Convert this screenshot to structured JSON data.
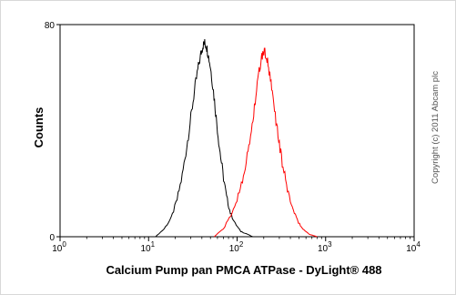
{
  "chart_data": {
    "type": "line",
    "title": "",
    "xlabel": "Calcium Pump pan PMCA ATPase - DyLight® 488",
    "ylabel": "Counts",
    "xscale": "log",
    "xlim": [
      1,
      10000
    ],
    "ylim": [
      0,
      80
    ],
    "x_ticks": [
      {
        "base": "10",
        "exp": "0",
        "value": 1
      },
      {
        "base": "10",
        "exp": "1",
        "value": 10
      },
      {
        "base": "10",
        "exp": "2",
        "value": 100
      },
      {
        "base": "10",
        "exp": "3",
        "value": 1000
      },
      {
        "base": "10",
        "exp": "4",
        "value": 10000
      }
    ],
    "y_ticks": [
      {
        "label": "0",
        "value": 0
      },
      {
        "label": "80",
        "value": 80
      }
    ],
    "grid": false,
    "legend": "none",
    "series": [
      {
        "color": "#000000",
        "x": [
          12,
          15,
          18,
          21,
          24,
          27,
          30,
          33,
          36,
          39,
          41,
          43,
          45,
          47,
          50,
          54,
          58,
          63,
          69,
          76,
          84,
          95,
          110,
          130,
          150
        ],
        "y": [
          0,
          3,
          7,
          14,
          23,
          34,
          45,
          55,
          63,
          69,
          72,
          73,
          72,
          69,
          64,
          55,
          45,
          34,
          24,
          15,
          9,
          5,
          2,
          1,
          0
        ]
      },
      {
        "color": "#ff0000",
        "x": [
          55,
          70,
          85,
          100,
          115,
          130,
          145,
          160,
          175,
          188,
          200,
          215,
          230,
          250,
          275,
          300,
          330,
          370,
          420,
          480,
          550,
          650,
          800
        ],
        "y": [
          0,
          3,
          8,
          14,
          22,
          30,
          40,
          51,
          61,
          67,
          70,
          68,
          62,
          54,
          44,
          35,
          26,
          18,
          11,
          6,
          3,
          1,
          0
        ]
      }
    ],
    "copyright": "Copyright (c) 2011 Abcam plc"
  }
}
